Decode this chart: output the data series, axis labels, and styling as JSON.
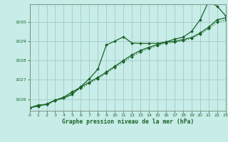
{
  "title": "Graphe pression niveau de la mer (hPa)",
  "background_color": "#c8ece8",
  "grid_color": "#a0ccc8",
  "line_color": "#1a6428",
  "xlim": [
    0,
    23
  ],
  "ylim": [
    1025.4,
    1030.9
  ],
  "yticks": [
    1026,
    1027,
    1028,
    1029,
    1030
  ],
  "xticks": [
    0,
    1,
    2,
    3,
    4,
    5,
    6,
    7,
    8,
    9,
    10,
    11,
    12,
    13,
    14,
    15,
    16,
    17,
    18,
    19,
    20,
    21,
    22,
    23
  ],
  "hours": [
    0,
    1,
    2,
    3,
    4,
    5,
    6,
    7,
    8,
    9,
    10,
    11,
    12,
    13,
    14,
    15,
    16,
    17,
    18,
    19,
    20,
    21,
    22,
    23
  ],
  "line1": [
    1025.55,
    1025.7,
    1025.72,
    1025.95,
    1026.05,
    1026.25,
    1026.65,
    1027.05,
    1027.55,
    1028.8,
    1029.0,
    1029.22,
    1028.9,
    1028.88,
    1028.88,
    1028.88,
    1028.95,
    1029.1,
    1029.2,
    1029.5,
    1030.1,
    1031.05,
    1030.8,
    1030.3
  ],
  "line2": [
    1025.55,
    1025.65,
    1025.75,
    1025.95,
    1026.1,
    1026.38,
    1026.62,
    1026.88,
    1027.12,
    1027.4,
    1027.7,
    1028.0,
    1028.28,
    1028.52,
    1028.68,
    1028.82,
    1028.95,
    1028.98,
    1029.08,
    1029.18,
    1029.42,
    1029.72,
    1030.1,
    1030.2
  ],
  "line3": [
    1025.55,
    1025.63,
    1025.72,
    1025.92,
    1026.08,
    1026.32,
    1026.56,
    1026.82,
    1027.06,
    1027.34,
    1027.64,
    1027.92,
    1028.2,
    1028.44,
    1028.62,
    1028.76,
    1028.9,
    1028.94,
    1029.02,
    1029.14,
    1029.36,
    1029.64,
    1029.98,
    1030.08
  ]
}
